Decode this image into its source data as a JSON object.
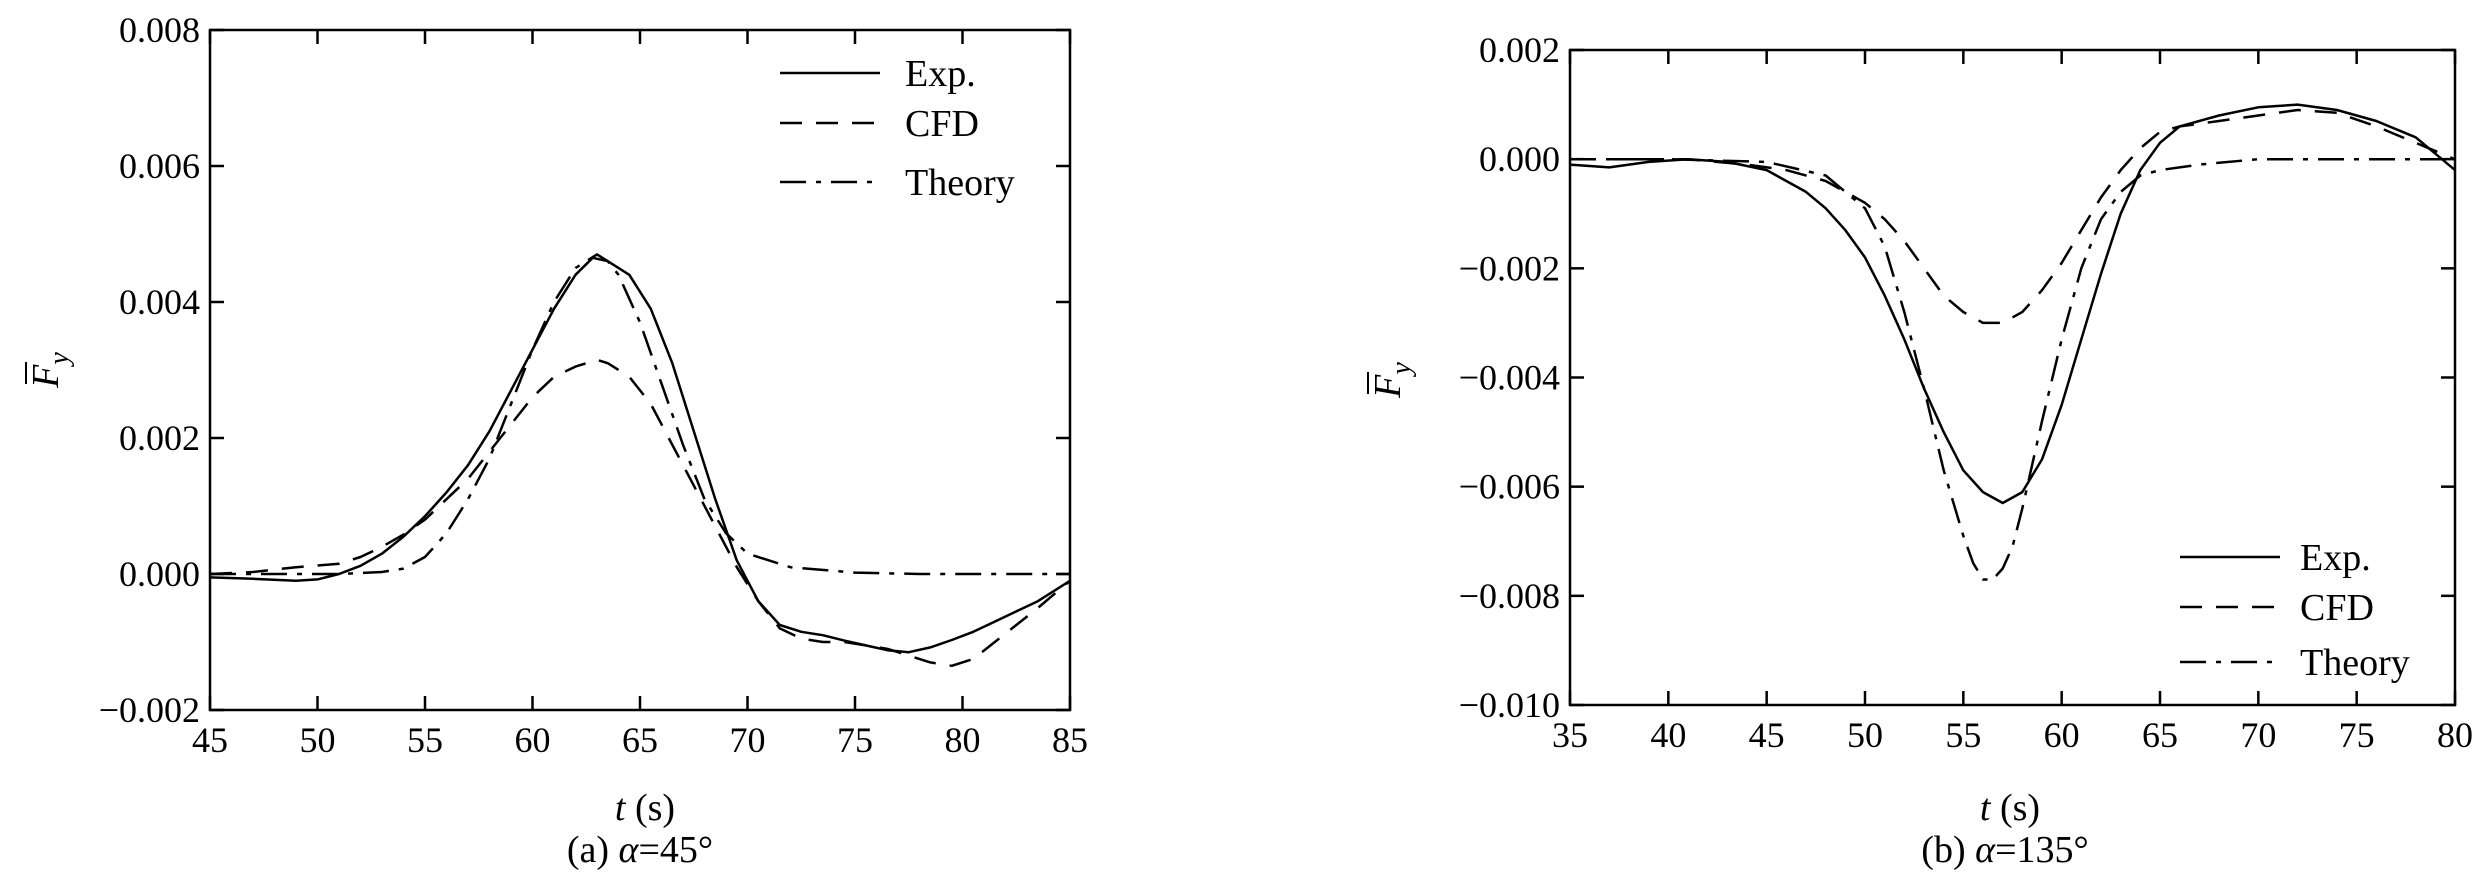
{
  "chart_data": [
    {
      "type": "line",
      "caption_prefix": "(a) ",
      "caption_var": "α",
      "caption_value": "=45°",
      "xlabel_var": "t",
      "xlabel_unit": " (s)",
      "ylabel_var": "F",
      "ylabel_sub": "y",
      "xlim": [
        45,
        85
      ],
      "ylim": [
        -0.002,
        0.008
      ],
      "xticks": [
        45,
        50,
        55,
        60,
        65,
        70,
        75,
        80,
        85
      ],
      "xtick_labels": [
        "45",
        "50",
        "55",
        "60",
        "65",
        "70",
        "75",
        "80",
        "85"
      ],
      "yticks": [
        -0.002,
        0.0,
        0.002,
        0.004,
        0.006,
        0.008
      ],
      "ytick_labels": [
        "−0.002",
        "0.000",
        "0.002",
        "0.004",
        "0.006",
        "0.008"
      ],
      "grid": false,
      "legend_position": "top-right",
      "series": [
        {
          "name": "Exp.",
          "style": "solid",
          "x": [
            45,
            47,
            49,
            50,
            51,
            52,
            53,
            54,
            55,
            56,
            57,
            58,
            59,
            60,
            61,
            62,
            62.8,
            63.5,
            64.5,
            65.5,
            66.5,
            67.5,
            68.5,
            69.5,
            70.5,
            71.5,
            72.5,
            73.5,
            74.5,
            75.5,
            76.5,
            77.5,
            78.5,
            79.5,
            80.5,
            81.5,
            82.5,
            83.5,
            85
          ],
          "y": [
            -5e-05,
            -7e-05,
            -0.0001,
            -8e-05,
            0.0,
            0.00012,
            0.0003,
            0.00055,
            0.00085,
            0.0012,
            0.0016,
            0.0021,
            0.0027,
            0.0033,
            0.0039,
            0.0044,
            0.00465,
            0.0046,
            0.0044,
            0.0039,
            0.0031,
            0.0021,
            0.0011,
            0.0002,
            -0.0004,
            -0.00075,
            -0.00085,
            -0.0009,
            -0.00098,
            -0.00105,
            -0.00112,
            -0.00115,
            -0.00108,
            -0.00097,
            -0.00085,
            -0.0007,
            -0.00055,
            -0.0004,
            -0.0001
          ]
        },
        {
          "name": "CFD",
          "style": "dashed",
          "x": [
            45,
            47,
            49,
            51,
            52,
            53,
            54,
            55,
            56,
            57,
            58,
            59,
            60,
            61,
            62,
            63,
            63.5,
            64.5,
            65.5,
            66.5,
            67.5,
            68.5,
            69.5,
            70.5,
            71.5,
            72.5,
            73.5,
            74.5,
            75.5,
            76.5,
            77.5,
            78.5,
            79.5,
            80.5,
            81.5,
            82.5,
            83.5,
            85
          ],
          "y": [
            0.0,
            3e-05,
            0.0001,
            0.00015,
            0.00025,
            0.0004,
            0.00058,
            0.0008,
            0.0011,
            0.0014,
            0.0018,
            0.0022,
            0.0026,
            0.0029,
            0.00305,
            0.00315,
            0.0031,
            0.0029,
            0.0025,
            0.0019,
            0.0013,
            0.0007,
            0.0001,
            -0.0004,
            -0.0008,
            -0.00095,
            -0.001,
            -0.001,
            -0.00105,
            -0.0011,
            -0.0012,
            -0.0013,
            -0.00135,
            -0.00125,
            -0.001,
            -0.00075,
            -0.0005,
            -0.0001
          ]
        },
        {
          "name": "Theory",
          "style": "dashdot",
          "x": [
            45,
            48,
            51,
            53,
            54,
            55,
            56,
            57,
            58,
            59,
            60,
            61,
            62,
            63,
            63.5,
            64,
            65,
            66,
            67,
            68,
            69,
            70,
            72,
            75,
            78,
            85
          ],
          "y": [
            0.0,
            0.0,
            0.0,
            3e-05,
            8e-05,
            0.00025,
            0.0006,
            0.0011,
            0.0017,
            0.0025,
            0.0033,
            0.004,
            0.0045,
            0.0047,
            0.0046,
            0.0044,
            0.0037,
            0.0028,
            0.0019,
            0.0011,
            0.0006,
            0.0003,
            0.0001,
            2e-05,
            0.0,
            0.0
          ]
        }
      ]
    },
    {
      "type": "line",
      "caption_prefix": "(b) ",
      "caption_var": "α",
      "caption_value": "=135°",
      "xlabel_var": "t",
      "xlabel_unit": " (s)",
      "ylabel_var": "F",
      "ylabel_sub": "y",
      "xlim": [
        35,
        80
      ],
      "ylim": [
        -0.01,
        0.002
      ],
      "xticks": [
        35,
        40,
        45,
        50,
        55,
        60,
        65,
        70,
        75,
        80
      ],
      "xtick_labels": [
        "35",
        "40",
        "45",
        "50",
        "55",
        "60",
        "65",
        "70",
        "75",
        "80"
      ],
      "yticks": [
        -0.01,
        -0.008,
        -0.006,
        -0.004,
        -0.002,
        0.0,
        0.002
      ],
      "ytick_labels": [
        "−0.010",
        "−0.008",
        "−0.006",
        "−0.004",
        "−0.002",
        "0.000",
        "0.002"
      ],
      "grid": false,
      "legend_position": "bottom-right",
      "series": [
        {
          "name": "Exp.",
          "style": "solid",
          "x": [
            35,
            37,
            39,
            41,
            43,
            45,
            46,
            47,
            48,
            49,
            50,
            51,
            52,
            53,
            54,
            55,
            56,
            57,
            58,
            59,
            60,
            61,
            62,
            63,
            64,
            65,
            66,
            68,
            70,
            72,
            74,
            76,
            78,
            80
          ],
          "y": [
            -0.0001,
            -0.00015,
            -5e-05,
            0.0,
            -5e-05,
            -0.0002,
            -0.0004,
            -0.0006,
            -0.0009,
            -0.0013,
            -0.0018,
            -0.0025,
            -0.0033,
            -0.0042,
            -0.005,
            -0.0057,
            -0.0061,
            -0.0063,
            -0.0061,
            -0.0055,
            -0.0045,
            -0.0033,
            -0.0021,
            -0.001,
            -0.0002,
            0.0003,
            0.0006,
            0.0008,
            0.00095,
            0.001,
            0.0009,
            0.0007,
            0.0004,
            -0.0002
          ]
        },
        {
          "name": "CFD",
          "style": "dashed",
          "x": [
            35,
            38,
            41,
            44,
            46,
            48,
            50,
            51,
            52,
            53,
            54,
            55,
            56,
            57,
            58,
            59,
            60,
            61,
            62,
            63,
            64,
            65,
            66,
            68,
            70,
            72,
            74,
            76,
            78,
            80
          ],
          "y": [
            0.0,
            0.0,
            0.0,
            -0.0001,
            -0.0002,
            -0.0004,
            -0.0008,
            -0.0011,
            -0.0015,
            -0.002,
            -0.0025,
            -0.0028,
            -0.003,
            -0.003,
            -0.0028,
            -0.0024,
            -0.0019,
            -0.0013,
            -0.0007,
            -0.0002,
            0.0002,
            0.0005,
            0.0006,
            0.0007,
            0.0008,
            0.0009,
            0.00085,
            0.0006,
            0.0003,
            0.0
          ]
        },
        {
          "name": "Theory",
          "style": "dashdot",
          "x": [
            35,
            40,
            45,
            48,
            50,
            51,
            52,
            53,
            54,
            55,
            55.5,
            56,
            56.5,
            57,
            57.5,
            58,
            59,
            60,
            61,
            62,
            63,
            64,
            65,
            67,
            70,
            75,
            80
          ],
          "y": [
            0.0,
            0.0,
            -5e-05,
            -0.0003,
            -0.0009,
            -0.0016,
            -0.0028,
            -0.0042,
            -0.0057,
            -0.0069,
            -0.0074,
            -0.0077,
            -0.0077,
            -0.0075,
            -0.0071,
            -0.0064,
            -0.0048,
            -0.0033,
            -0.002,
            -0.0011,
            -0.0006,
            -0.0003,
            -0.0002,
            -0.0001,
            0.0,
            0.0,
            0.0
          ]
        }
      ]
    }
  ]
}
